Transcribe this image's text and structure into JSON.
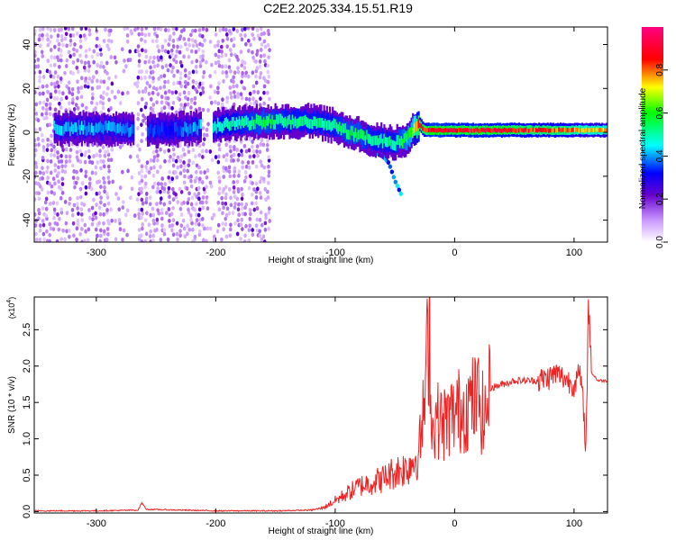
{
  "title": "C2E2.2025.334.15.51.R19",
  "chart_data": [
    {
      "type": "heatmap",
      "xlabel": "Height of straight line (km)",
      "ylabel": "Frequency (Hz)",
      "xlim": [
        -352,
        128
      ],
      "ylim": [
        -50,
        48
      ],
      "xticks": [
        -300,
        -200,
        -100,
        0,
        100
      ],
      "yticks": [
        -40,
        -20,
        0,
        20,
        40
      ],
      "colorbar": {
        "label": "Normalized spectral amplitude",
        "range": [
          0.0,
          1.0
        ],
        "ticks": [
          0.0,
          0.2,
          0.4,
          0.6,
          0.8
        ],
        "colormap": [
          "#ffffff",
          "#cc99ff",
          "#6600cc",
          "#0000ff",
          "#00ffff",
          "#00ff00",
          "#ffff00",
          "#ff0000",
          "#ff0080"
        ]
      },
      "ridge": {
        "x": [
          -335,
          -300,
          -265,
          -240,
          -200,
          -180,
          -160,
          -140,
          -120,
          -100,
          -90,
          -80,
          -70,
          -60,
          -50,
          -40,
          -35,
          -30,
          -25,
          -20,
          0,
          20,
          40,
          60,
          80,
          100,
          110,
          128
        ],
        "freq": [
          2,
          2,
          1,
          1,
          3,
          4,
          5,
          5,
          5,
          3,
          0,
          -1,
          -3,
          -4,
          -5,
          -3,
          1,
          4,
          1,
          1,
          1,
          1,
          1,
          1,
          1,
          1,
          1,
          1
        ],
        "amplitude": [
          0.45,
          0.45,
          0.4,
          0.35,
          0.5,
          0.55,
          0.6,
          0.55,
          0.55,
          0.55,
          0.6,
          0.6,
          0.55,
          0.55,
          0.55,
          0.65,
          0.7,
          0.95,
          0.9,
          1.0,
          0.95,
          0.95,
          0.95,
          0.9,
          0.9,
          0.85,
          0.8,
          0.8
        ]
      },
      "branch": {
        "x": [
          -90,
          -80,
          -70,
          -60,
          -55,
          -50,
          -45
        ],
        "freq": [
          -3,
          -5,
          -8,
          -11,
          -14,
          -22,
          -28
        ]
      },
      "noise_region_x": [
        -352,
        -155
      ]
    },
    {
      "type": "line",
      "xlabel": "Height of straight line (km)",
      "ylabel": "SNR (10 * v/v)",
      "y_multiplier": "(x10",
      "y_multiplier_exp": "4",
      "y_multiplier_close": ")",
      "xlim": [
        -352,
        128
      ],
      "ylim": [
        -0.02,
        2.95
      ],
      "xticks": [
        -300,
        -200,
        -100,
        0,
        100
      ],
      "yticks": [
        0.0,
        0.5,
        1.0,
        1.5,
        2.0,
        2.5
      ],
      "color": "#ee2222",
      "series": [
        {
          "x": [
            -352,
            -300,
            -265,
            -262,
            -258,
            -200,
            -150,
            -120,
            -110,
            -100,
            -90,
            -80,
            -70,
            -60,
            -50,
            -40,
            -30,
            -25,
            -21,
            -19,
            -17,
            -10,
            0,
            10,
            20,
            25,
            30,
            40,
            50,
            60,
            70,
            80,
            85,
            90,
            100,
            105,
            108,
            110,
            112,
            115,
            120,
            128
          ],
          "y": [
            0.01,
            0.01,
            0.02,
            0.12,
            0.03,
            0.01,
            0.01,
            0.02,
            0.05,
            0.15,
            0.25,
            0.35,
            0.4,
            0.45,
            0.55,
            0.6,
            0.8,
            1.5,
            2.7,
            1.0,
            1.3,
            1.2,
            1.35,
            1.45,
            1.55,
            1.25,
            1.7,
            1.75,
            1.8,
            1.8,
            1.8,
            1.85,
            1.9,
            1.85,
            1.75,
            1.9,
            1.4,
            0.85,
            2.85,
            1.9,
            1.8,
            1.8
          ]
        }
      ]
    }
  ]
}
